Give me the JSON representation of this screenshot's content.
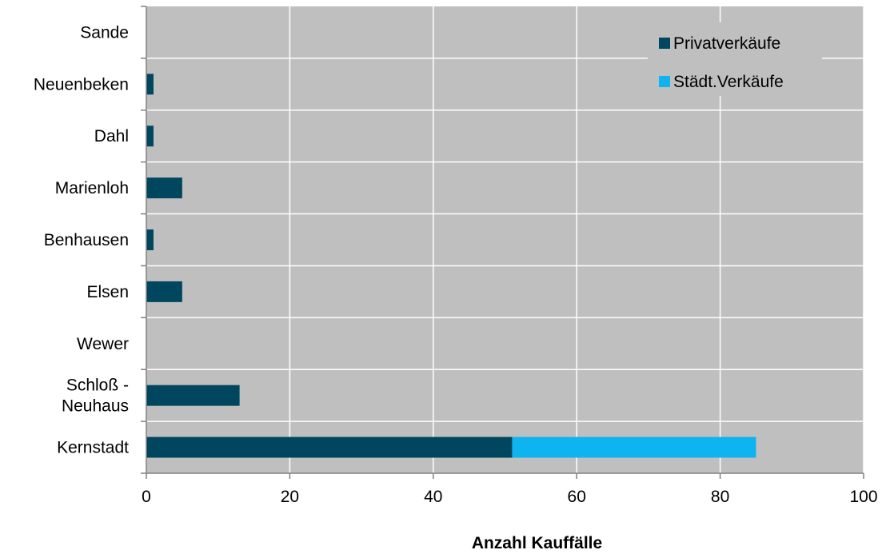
{
  "chart_data": {
    "type": "bar",
    "orientation": "horizontal",
    "stacked": true,
    "categories": [
      "Kernstadt",
      "Schloß - Neuhaus",
      "Wewer",
      "Elsen",
      "Benhausen",
      "Marienloh",
      "Dahl",
      "Neuenbeken",
      "Sande"
    ],
    "series": [
      {
        "name": "Privatverkäufe",
        "color": "#00465f",
        "values": [
          51,
          13,
          0,
          5,
          1,
          5,
          1,
          1,
          0
        ]
      },
      {
        "name": "Städt.Verkäufe",
        "color": "#0db4f0",
        "values": [
          34,
          0,
          0,
          0,
          0,
          0,
          0,
          0,
          0
        ]
      }
    ],
    "xlim": [
      0,
      100
    ],
    "xticks": [
      0,
      20,
      40,
      60,
      80,
      100
    ],
    "xlabel": "Anzahl Kauffälle",
    "ylabel": "",
    "title": "",
    "grid": true,
    "legend": "top-right",
    "plot_background": "#bfbfbf",
    "grid_color": "#ffffff"
  }
}
